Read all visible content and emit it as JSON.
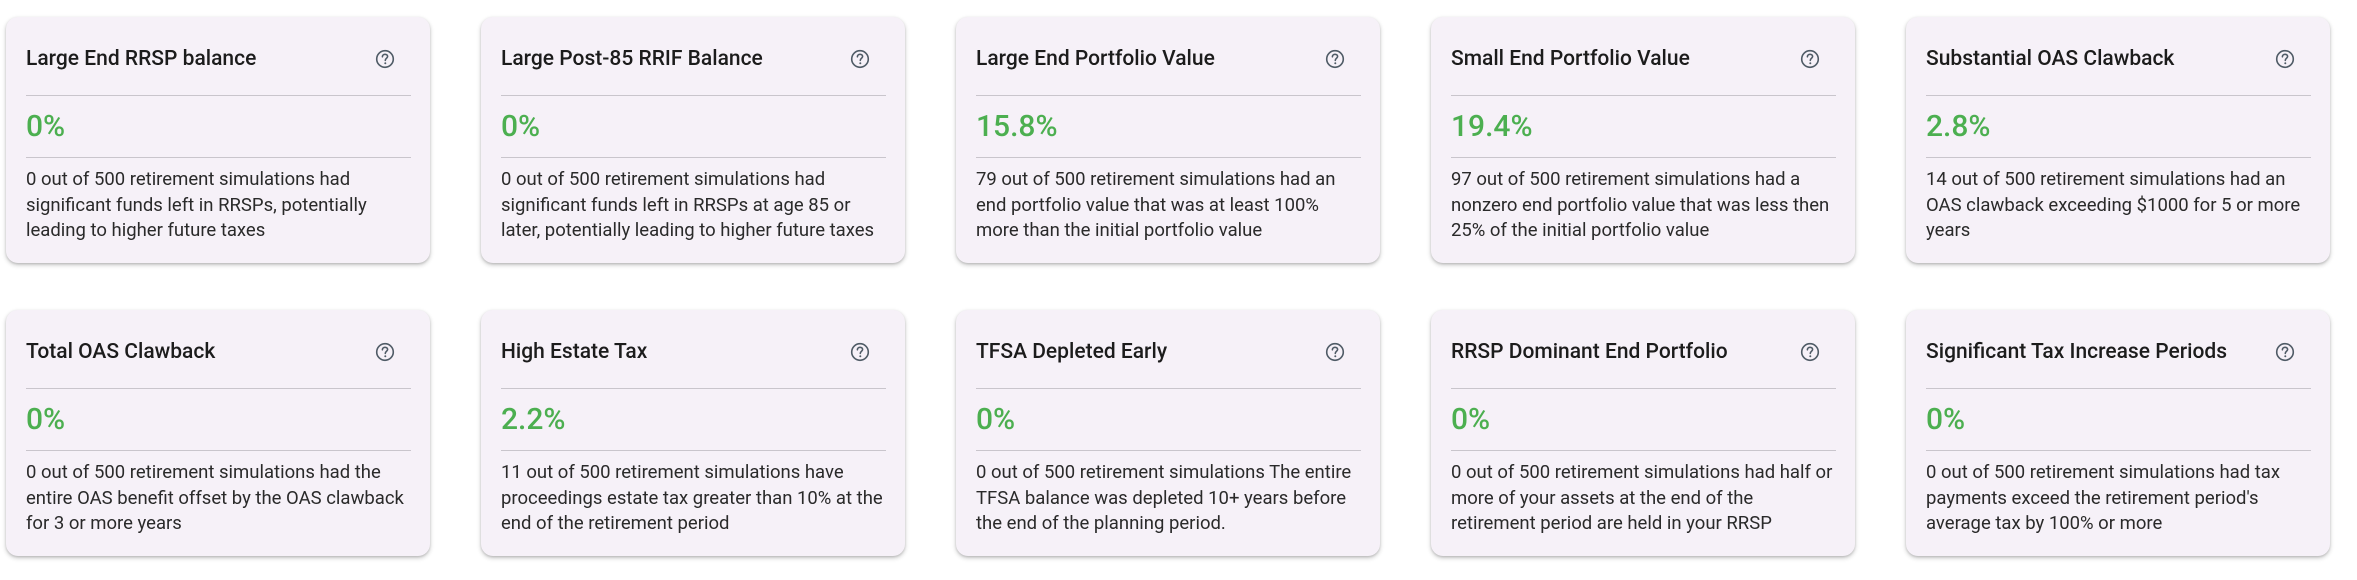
{
  "cards": [
    {
      "title": "Large End RRSP balance",
      "value": "0%",
      "description": "0 out of 500 retirement simulations had significant funds left in RRSPs, potentially leading to higher future taxes"
    },
    {
      "title": "Large Post-85 RRIF Balance",
      "value": "0%",
      "description": "0 out of 500 retirement simulations had significant funds left in RRSPs at age 85 or later, potentially leading to higher future taxes"
    },
    {
      "title": "Large End Portfolio Value",
      "value": "15.8%",
      "description": "79 out of 500 retirement simulations had an end portfolio value that was at least 100% more than the initial portfolio value"
    },
    {
      "title": "Small End Portfolio Value",
      "value": "19.4%",
      "description": "97 out of 500 retirement simulations had a nonzero end portfolio value that was less then 25% of the initial portfolio value"
    },
    {
      "title": "Substantial OAS Clawback",
      "value": "2.8%",
      "description": "14 out of 500 retirement simulations had an OAS clawback exceeding $1000 for 5 or more years"
    },
    {
      "title": "Total OAS Clawback",
      "value": "0%",
      "description": "0 out of 500 retirement simulations had the entire OAS benefit offset by the OAS clawback for 3 or more years"
    },
    {
      "title": "High Estate Tax",
      "value": "2.2%",
      "description": "11 out of 500 retirement simulations have proceedings estate tax greater than 10% at the end of the retirement period"
    },
    {
      "title": "TFSA Depleted Early",
      "value": "0%",
      "description": "0 out of 500 retirement simulations The entire TFSA balance was depleted 10+ years before the end of the planning period."
    },
    {
      "title": "RRSP Dominant End Portfolio",
      "value": "0%",
      "description": "0 out of 500 retirement simulations had half or more of your assets at the end of the retirement period are held in your RRSP"
    },
    {
      "title": "Significant Tax Increase Periods",
      "value": "0%",
      "description": "0 out of 500 retirement simulations had tax payments exceed the retirement period's average tax by 100% or more"
    }
  ]
}
